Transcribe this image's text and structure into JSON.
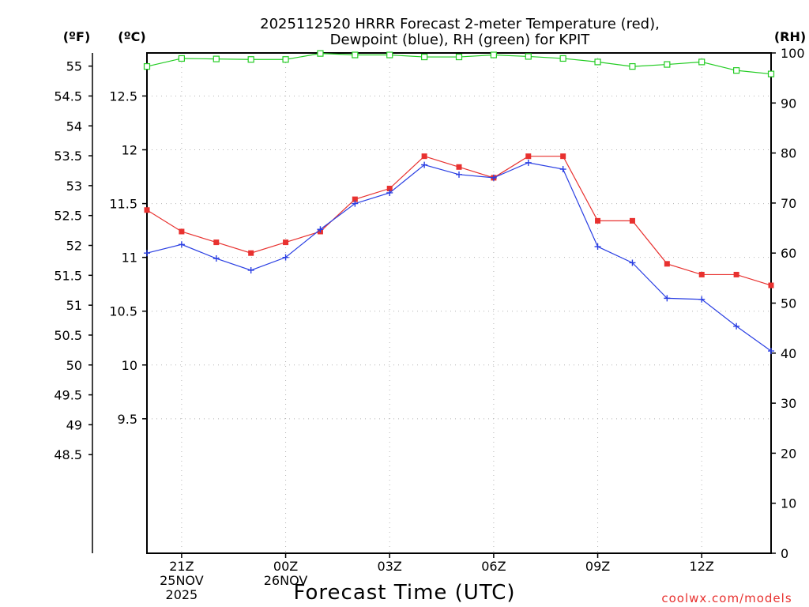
{
  "chart_data": {
    "type": "line",
    "title_line1": "2025112520 HRRR Forecast 2-meter Temperature (red),",
    "title_line2": "Dewpoint (blue), RH (green) for KPIT",
    "xlabel": "Forecast Time (UTC)",
    "credit": "coolwx.com/models",
    "unit_labels": {
      "fahrenheit": "(ºF)",
      "celsius": "(ºC)",
      "rh": "(RH)"
    },
    "x_hours": [
      20,
      21,
      22,
      23,
      24,
      25,
      26,
      27,
      28,
      29,
      30,
      31,
      32,
      33,
      34,
      35,
      36,
      37,
      38
    ],
    "x_range": [
      20,
      38
    ],
    "x_ticks": [
      {
        "hour": 21,
        "lines": [
          "21Z",
          "25NOV",
          "2025"
        ]
      },
      {
        "hour": 24,
        "lines": [
          "00Z",
          "26NOV"
        ]
      },
      {
        "hour": 27,
        "lines": [
          "03Z"
        ]
      },
      {
        "hour": 30,
        "lines": [
          "06Z"
        ]
      },
      {
        "hour": 33,
        "lines": [
          "09Z"
        ]
      },
      {
        "hour": 36,
        "lines": [
          "12Z"
        ]
      }
    ],
    "celsius_range": [
      8.25,
      12.9
    ],
    "celsius_ticks": [
      "9.5",
      "10",
      "10.5",
      "11",
      "11.5",
      "12",
      "12.5"
    ],
    "fahrenheit_ticks": [
      "48.5",
      "49",
      "49.5",
      "50",
      "50.5",
      "51",
      "51.5",
      "52",
      "52.5",
      "53",
      "53.5",
      "54",
      "54.5",
      "55"
    ],
    "rh_range": [
      0,
      100
    ],
    "rh_ticks": [
      "0",
      "10",
      "20",
      "30",
      "40",
      "50",
      "60",
      "70",
      "80",
      "90",
      "100"
    ],
    "series": [
      {
        "name": "Temperature",
        "color": "#e8312f",
        "marker": "square",
        "values": [
          11.44,
          11.24,
          11.14,
          11.04,
          11.14,
          11.24,
          11.54,
          11.64,
          11.94,
          11.84,
          11.74,
          11.94,
          11.94,
          11.34,
          11.34,
          10.94,
          10.84,
          10.84,
          10.74
        ]
      },
      {
        "name": "Dewpoint",
        "color": "#2a3fe3",
        "marker": "plus",
        "values": [
          11.04,
          11.12,
          10.99,
          10.88,
          11.0,
          11.26,
          11.5,
          11.6,
          11.86,
          11.77,
          11.74,
          11.88,
          11.82,
          11.1,
          10.95,
          10.62,
          10.61,
          10.36,
          10.13
        ]
      },
      {
        "name": "RH",
        "color": "#22cc22",
        "marker": "open-square",
        "values": [
          97.3,
          98.9,
          98.8,
          98.7,
          98.7,
          99.9,
          99.6,
          99.6,
          99.2,
          99.2,
          99.6,
          99.3,
          98.9,
          98.2,
          97.3,
          97.7,
          98.2,
          96.5,
          95.8
        ]
      }
    ]
  }
}
